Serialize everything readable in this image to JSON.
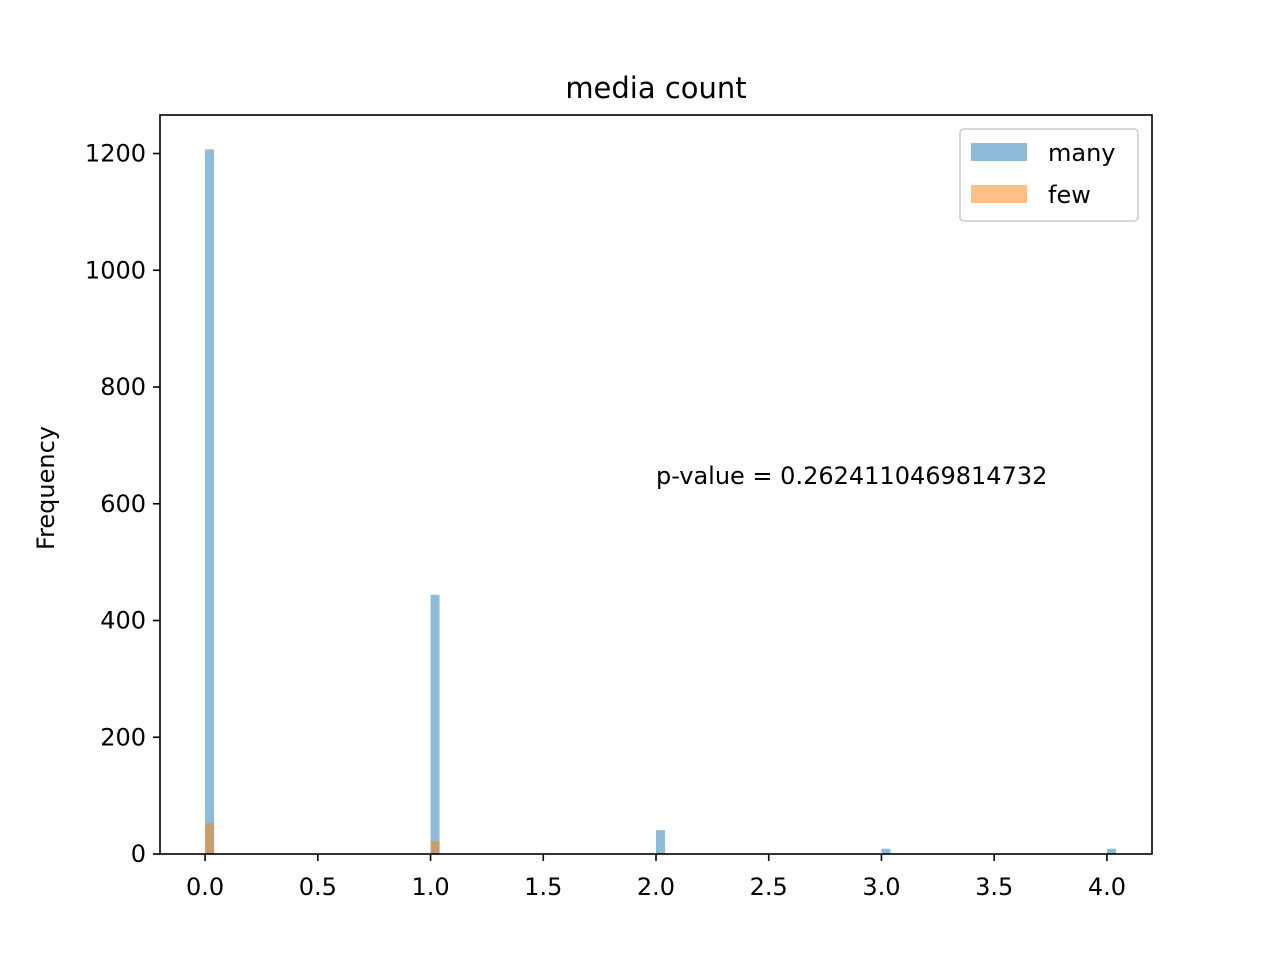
{
  "chart_data": {
    "type": "bar",
    "title": "media count",
    "xlabel": "",
    "ylabel": "Frequency",
    "xlim": [
      -0.2,
      4.2
    ],
    "ylim": [
      0,
      1266
    ],
    "xticks": [
      "0.0",
      "0.5",
      "1.0",
      "1.5",
      "2.0",
      "2.5",
      "3.0",
      "3.5",
      "4.0"
    ],
    "yticks": [
      "0",
      "200",
      "400",
      "600",
      "800",
      "1000",
      "1200"
    ],
    "bin_width": 0.04,
    "grid": false,
    "legend_position": "upper right",
    "series": [
      {
        "name": "many",
        "color": "#1f77b4",
        "alpha": 0.5,
        "x": [
          0,
          1,
          2,
          3,
          4
        ],
        "values": [
          1207,
          444,
          41,
          9,
          9
        ]
      },
      {
        "name": "few",
        "color": "#ff7f0e",
        "alpha": 0.5,
        "x": [
          0,
          1
        ],
        "values": [
          53,
          23
        ]
      }
    ],
    "annotation": "p-value = 0.2624110469814732"
  }
}
